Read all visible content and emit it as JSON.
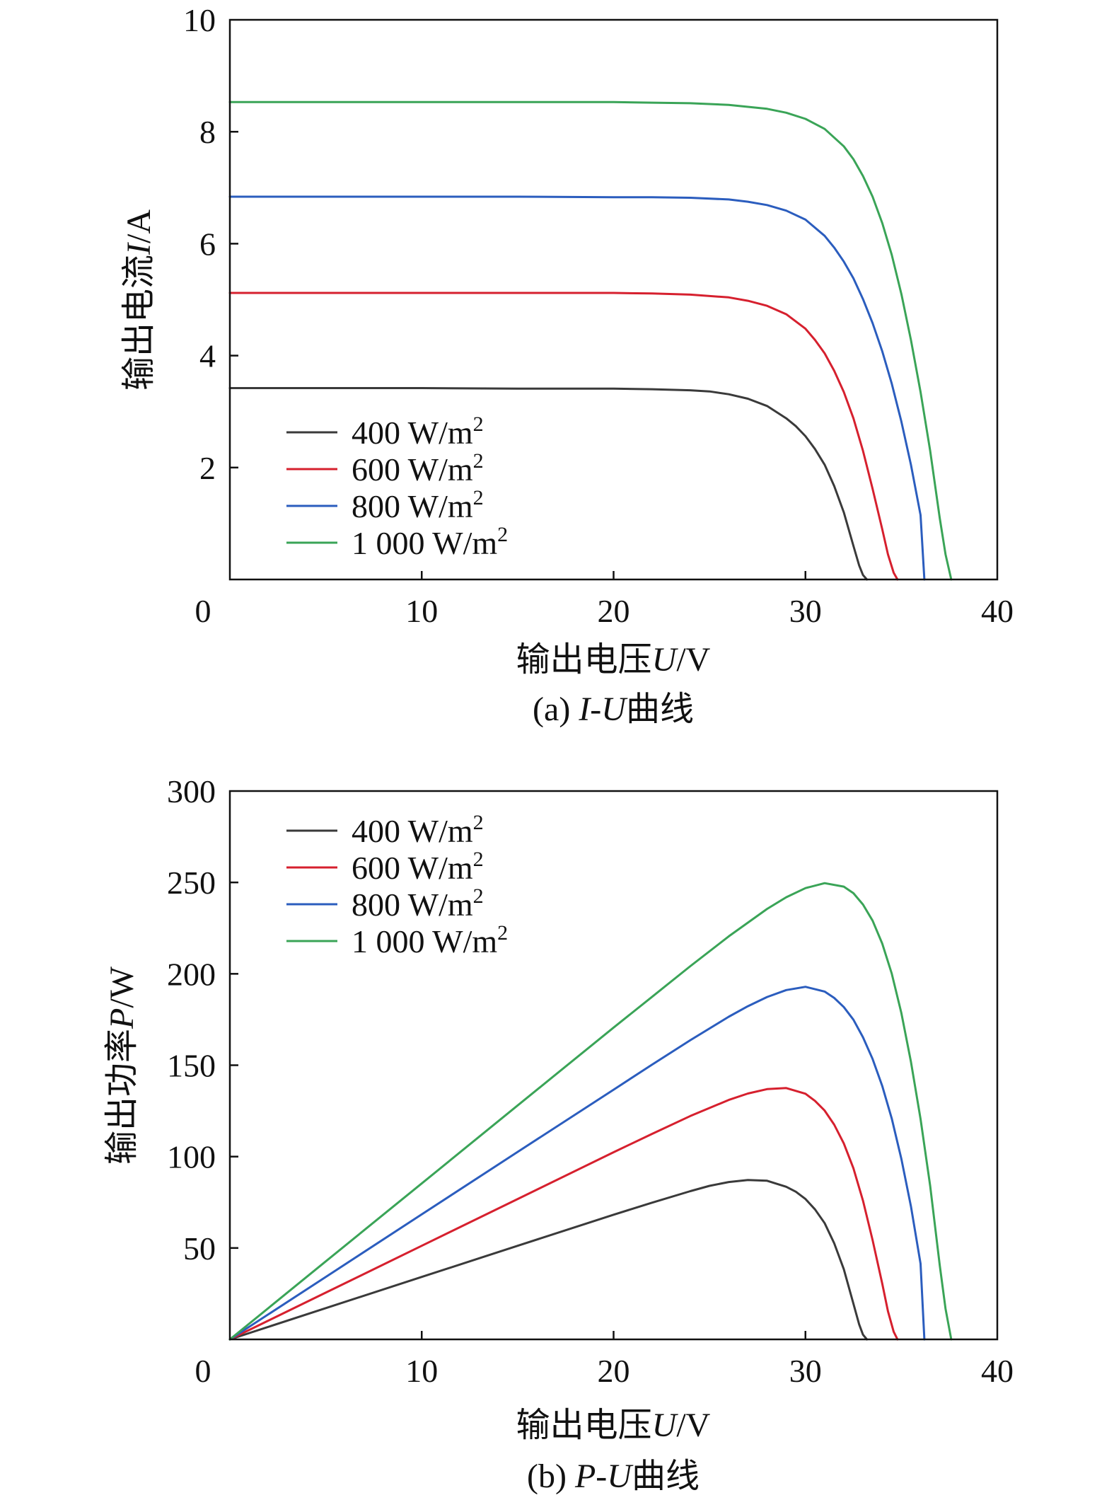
{
  "chart_data": [
    {
      "id": "a",
      "type": "line",
      "xlabel_prefix": "输出电压",
      "xlabel_var": "U",
      "xlabel_unit": "/V",
      "ylabel_prefix": "输出电流",
      "ylabel_var": "I",
      "ylabel_unit": "/A",
      "caption_prefix": "(a) ",
      "caption_var": "I-U",
      "caption_suffix": "曲线",
      "xlim": [
        0,
        40
      ],
      "ylim": [
        0,
        10
      ],
      "xticks": [
        0,
        10,
        20,
        30,
        40
      ],
      "yticks": [
        2,
        4,
        6,
        8,
        10
      ],
      "origin_label": "0",
      "grid": false,
      "legend": {
        "placement": "lower-left",
        "entries": [
          {
            "text": "400 W/m",
            "sup": "2"
          },
          {
            "text": "600 W/m",
            "sup": "2"
          },
          {
            "text": "800 W/m",
            "sup": "2"
          },
          {
            "text": "1 000 W/m",
            "sup": "2"
          }
        ]
      },
      "series": [
        {
          "color": "#3a3a3a",
          "x": [
            0,
            5,
            10,
            15,
            20,
            22,
            24,
            25,
            26,
            27,
            28,
            29,
            29.5,
            30,
            30.5,
            31,
            31.5,
            32,
            32.5,
            32.8,
            33,
            33.2
          ],
          "y": [
            3.42,
            3.42,
            3.42,
            3.41,
            3.41,
            3.4,
            3.38,
            3.36,
            3.31,
            3.23,
            3.1,
            2.88,
            2.74,
            2.56,
            2.33,
            2.05,
            1.67,
            1.2,
            0.6,
            0.25,
            0.08,
            0
          ]
        },
        {
          "color": "#d6202e",
          "x": [
            0,
            5,
            10,
            15,
            20,
            22,
            24,
            26,
            27,
            28,
            29,
            30,
            30.5,
            31,
            31.5,
            32,
            32.5,
            33,
            33.5,
            34,
            34.3,
            34.6,
            34.8
          ],
          "y": [
            5.12,
            5.12,
            5.12,
            5.12,
            5.12,
            5.11,
            5.09,
            5.04,
            4.98,
            4.89,
            4.74,
            4.48,
            4.28,
            4.04,
            3.73,
            3.35,
            2.88,
            2.3,
            1.62,
            0.9,
            0.45,
            0.12,
            0
          ]
        },
        {
          "color": "#2b5dbe",
          "x": [
            0,
            5,
            10,
            15,
            20,
            22,
            24,
            26,
            27,
            28,
            29,
            30,
            31,
            31.5,
            32,
            32.5,
            33,
            33.5,
            34,
            34.5,
            35,
            35.5,
            36,
            36.2
          ],
          "y": [
            6.84,
            6.84,
            6.84,
            6.84,
            6.83,
            6.83,
            6.82,
            6.79,
            6.75,
            6.69,
            6.59,
            6.43,
            6.14,
            5.93,
            5.68,
            5.38,
            5.01,
            4.58,
            4.08,
            3.5,
            2.82,
            2.05,
            1.15,
            0
          ]
        },
        {
          "color": "#3aa457",
          "x": [
            0,
            5,
            10,
            15,
            20,
            22,
            24,
            26,
            28,
            29,
            30,
            31,
            32,
            32.5,
            33,
            33.5,
            34,
            34.5,
            35,
            35.5,
            36,
            36.5,
            37,
            37.3,
            37.6
          ],
          "y": [
            8.53,
            8.53,
            8.53,
            8.53,
            8.53,
            8.52,
            8.51,
            8.48,
            8.41,
            8.34,
            8.23,
            8.05,
            7.74,
            7.51,
            7.21,
            6.84,
            6.37,
            5.8,
            5.1,
            4.28,
            3.35,
            2.3,
            1.1,
            0.45,
            0
          ]
        }
      ]
    },
    {
      "id": "b",
      "type": "line",
      "xlabel_prefix": "输出电压",
      "xlabel_var": "U",
      "xlabel_unit": "/V",
      "ylabel_prefix": "输出功率",
      "ylabel_var": "P",
      "ylabel_unit": "/W",
      "caption_prefix": "(b) ",
      "caption_var": "P-U",
      "caption_suffix": "曲线",
      "xlim": [
        0,
        40
      ],
      "ylim": [
        0,
        300
      ],
      "xticks": [
        0,
        10,
        20,
        30,
        40
      ],
      "yticks": [
        50,
        100,
        150,
        200,
        250,
        300
      ],
      "origin_label": "0",
      "grid": false,
      "legend": {
        "placement": "top-left",
        "entries": [
          {
            "text": "400 W/m",
            "sup": "2"
          },
          {
            "text": "600 W/m",
            "sup": "2"
          },
          {
            "text": "800 W/m",
            "sup": "2"
          },
          {
            "text": "1 000 W/m",
            "sup": "2"
          }
        ]
      },
      "series": [
        {
          "color": "#3a3a3a",
          "x": [
            0,
            5,
            10,
            15,
            20,
            22,
            24,
            25,
            26,
            27,
            28,
            29,
            29.5,
            30,
            30.5,
            31,
            31.5,
            32,
            32.5,
            32.8,
            33,
            33.2
          ],
          "y": [
            0,
            17.1,
            34.2,
            51.2,
            68.2,
            74.8,
            81.1,
            84,
            86.1,
            87.2,
            86.8,
            83.5,
            80.8,
            76.8,
            71.1,
            63.6,
            52.6,
            38.4,
            19.5,
            8.2,
            2.6,
            0
          ]
        },
        {
          "color": "#d6202e",
          "x": [
            0,
            5,
            10,
            15,
            20,
            22,
            24,
            26,
            27,
            28,
            29,
            30,
            30.5,
            31,
            31.5,
            32,
            32.5,
            33,
            33.5,
            34,
            34.3,
            34.6,
            34.8
          ],
          "y": [
            0,
            25.6,
            51.2,
            76.8,
            102.4,
            112.4,
            122.2,
            131,
            134.5,
            136.9,
            137.5,
            134.4,
            130.5,
            125.2,
            117.5,
            107.2,
            93.6,
            75.9,
            54.3,
            30.6,
            15.4,
            4.2,
            0
          ]
        },
        {
          "color": "#2b5dbe",
          "x": [
            0,
            5,
            10,
            15,
            20,
            22,
            24,
            26,
            27,
            28,
            29,
            30,
            31,
            31.5,
            32,
            32.5,
            33,
            33.5,
            34,
            34.5,
            35,
            35.5,
            36,
            36.2
          ],
          "y": [
            0,
            34.2,
            68.4,
            102.6,
            136.6,
            150.3,
            163.7,
            176.5,
            182.3,
            187.3,
            191.1,
            192.9,
            190.3,
            186.8,
            181.8,
            174.9,
            165.3,
            153.4,
            138.7,
            120.8,
            98.7,
            72.8,
            41.4,
            0
          ]
        },
        {
          "color": "#3aa457",
          "x": [
            0,
            5,
            10,
            15,
            20,
            22,
            24,
            26,
            28,
            29,
            30,
            31,
            32,
            32.5,
            33,
            33.5,
            34,
            34.5,
            35,
            35.5,
            36,
            36.5,
            37,
            37.3,
            37.6
          ],
          "y": [
            0,
            42.7,
            85.3,
            128,
            170.6,
            187.4,
            204.2,
            220.5,
            235.5,
            241.9,
            246.9,
            249.6,
            247.7,
            244.1,
            237.9,
            229.1,
            216.6,
            200.1,
            178.5,
            151.9,
            120.6,
            84,
            40.7,
            16.8,
            0
          ]
        }
      ]
    }
  ]
}
